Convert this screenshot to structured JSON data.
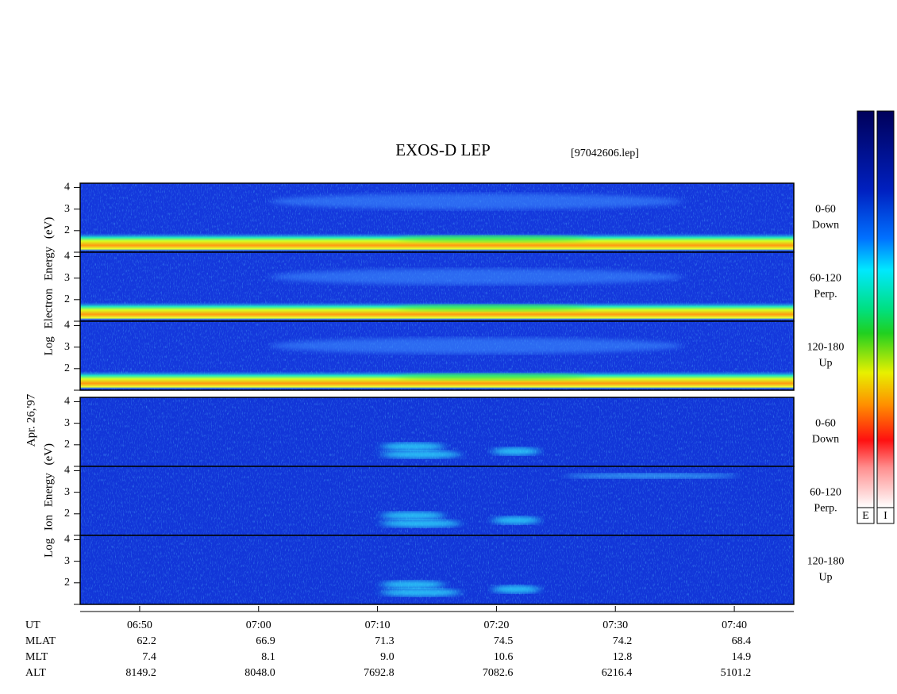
{
  "chart_data": {
    "type": "spectrogram",
    "title": "EXOS-D LEP",
    "subtitle": "[97042606.lep]",
    "date_label": "Apr. 26,'97",
    "groups": [
      {
        "label": "Log  Electron  Energy (eV)"
      },
      {
        "label": "Log  Ion  Energy (eV)"
      }
    ],
    "panels": [
      {
        "angle": "0-60",
        "direction": "Down"
      },
      {
        "angle": "60-120",
        "direction": "Perp."
      },
      {
        "angle": "120-180",
        "direction": "Up"
      },
      {
        "angle": "0-60",
        "direction": "Down"
      },
      {
        "angle": "60-120",
        "direction": "Perp."
      },
      {
        "angle": "120-180",
        "direction": "Up"
      }
    ],
    "ylim": [
      1,
      4.2
    ],
    "yticks": [
      2,
      3,
      4
    ],
    "xlim": [
      "06:45",
      "07:45"
    ],
    "x_label": "UT",
    "xticks": [
      "06:50",
      "07:00",
      "07:10",
      "07:20",
      "07:30",
      "07:40"
    ],
    "ephemeris": [
      {
        "name": "MLAT",
        "values": [
          "62.2",
          "66.9",
          "71.3",
          "74.5",
          "74.2",
          "68.4"
        ]
      },
      {
        "name": "MLT",
        "values": [
          "7.4",
          "8.1",
          "9.0",
          "10.6",
          "12.8",
          "14.9"
        ]
      },
      {
        "name": "ALT",
        "values": [
          "8149.2",
          "8048.0",
          "7692.8",
          "7082.6",
          "6216.4",
          "5101.2"
        ]
      }
    ],
    "colorbars": [
      "E",
      "I"
    ]
  }
}
